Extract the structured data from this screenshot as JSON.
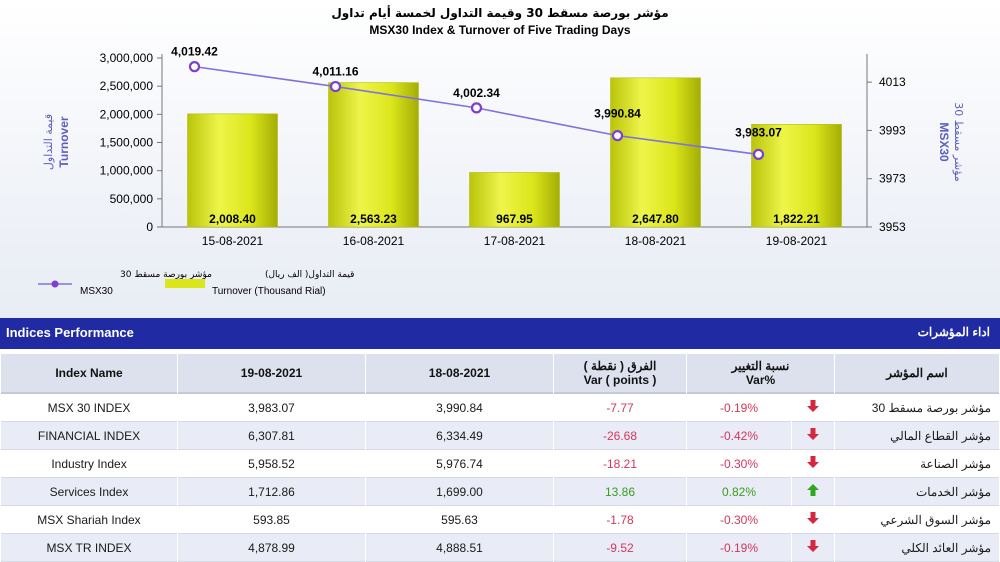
{
  "chart_data": {
    "type": "bar",
    "title_ar": "مؤشر بورصة مسقط 30 وقيمة التداول لخمسة أيام تداول",
    "title": "MSX30 Index & Turnover of Five Trading Days",
    "categories": [
      "15-08-2021",
      "16-08-2021",
      "17-08-2021",
      "18-08-2021",
      "19-08-2021"
    ],
    "series": [
      {
        "name": "Turnover (Thousand Rial)",
        "name_ar": "قيمة التداول( الف ريال)",
        "type": "bar",
        "axis": "left",
        "values": [
          2008.4,
          2563.23,
          967.95,
          2647.8,
          1822.21
        ],
        "labels": [
          "2,008.40",
          "2,563.23",
          "967.95",
          "2,647.80",
          "1,822.21"
        ],
        "color": "#e4ef1e"
      },
      {
        "name": "MSX30",
        "name_ar": "مؤشر بورصة مسقط 30",
        "type": "line",
        "axis": "right",
        "values": [
          4019.42,
          4011.16,
          4002.34,
          3990.84,
          3983.07
        ],
        "labels": [
          "4,019.42",
          "4,011.16",
          "4,002.34",
          "3,990.84",
          "3,983.07"
        ],
        "color": "#6a5fd6"
      }
    ],
    "left_axis": {
      "label": "Turnover",
      "label_ar": "قيمة التداول",
      "ylim": [
        0,
        3000000
      ],
      "ticks": [
        "0",
        "500,000",
        "1,000,000",
        "1,500,000",
        "2,000,000",
        "2,500,000",
        "3,000,000"
      ]
    },
    "right_axis": {
      "label": "MSX30",
      "label_ar": "مؤشر مسقط 30",
      "ylim": [
        3953,
        4023
      ],
      "ticks": [
        "3953",
        "3973",
        "3993",
        "4013"
      ],
      "tick_values": [
        3953,
        3973,
        3993,
        4013
      ]
    },
    "legend_position": "bottom-left"
  },
  "section": {
    "title_en": "Indices Performance",
    "title_ar": "اداء المؤشرات"
  },
  "table": {
    "headers": {
      "index_name": "Index Name",
      "date1": "19-08-2021",
      "date2": "18-08-2021",
      "var_ar": "الفرق ( نقطة )",
      "var_en": "Var ( points )",
      "pct_ar": "نسبة التغيير",
      "pct_en": "Var%",
      "name_ar": "اسم المؤشر"
    },
    "rows": [
      {
        "name": "MSX 30 INDEX",
        "v1": "3,983.07",
        "v2": "3,990.84",
        "var": "-7.77",
        "pct": "-0.19%",
        "dir": "down",
        "name_ar": "مؤشر بورصة مسقط 30"
      },
      {
        "name": "FINANCIAL INDEX",
        "v1": "6,307.81",
        "v2": "6,334.49",
        "var": "-26.68",
        "pct": "-0.42%",
        "dir": "down",
        "name_ar": "مؤشر القطاع المالي"
      },
      {
        "name": "Industry Index",
        "v1": "5,958.52",
        "v2": "5,976.74",
        "var": "-18.21",
        "pct": "-0.30%",
        "dir": "down",
        "name_ar": "مؤشر الصناعة"
      },
      {
        "name": "Services Index",
        "v1": "1,712.86",
        "v2": "1,699.00",
        "var": "13.86",
        "pct": "0.82%",
        "dir": "up",
        "name_ar": "مؤشر الخدمات"
      },
      {
        "name": "MSX Shariah Index",
        "v1": "593.85",
        "v2": "595.63",
        "var": "-1.78",
        "pct": "-0.30%",
        "dir": "down",
        "name_ar": "مؤشر السوق الشرعي"
      },
      {
        "name": "MSX TR INDEX",
        "v1": "4,878.99",
        "v2": "4,888.51",
        "var": "-9.52",
        "pct": "-0.19%",
        "dir": "down",
        "name_ar": "مؤشر العائد الكلي"
      }
    ]
  }
}
